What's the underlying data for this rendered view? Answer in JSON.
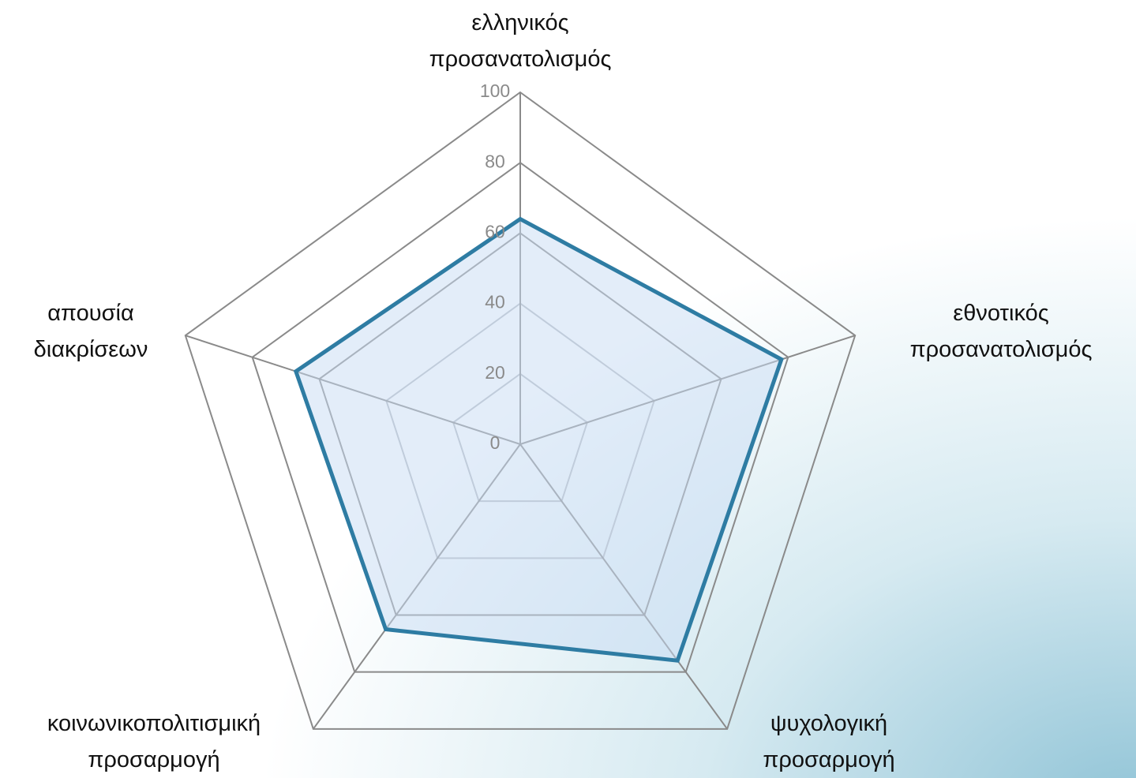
{
  "chart_data": {
    "type": "radar",
    "categories": [
      "ελληνικός\nπροσανατολισμός",
      "εθνοτικός\nπροσανατολισμός",
      "ψυχολογική\nπροσαρμογή",
      "κοινωνικοπολιτισμική\nπροσαρμογή",
      "απουσία\nδιακρίσεων"
    ],
    "values": [
      64,
      78,
      76,
      65,
      67
    ],
    "color": "#2e7ca3",
    "ylim": [
      0,
      100
    ],
    "yticks": [
      0,
      20,
      40,
      60,
      80,
      100
    ],
    "grid": true
  }
}
